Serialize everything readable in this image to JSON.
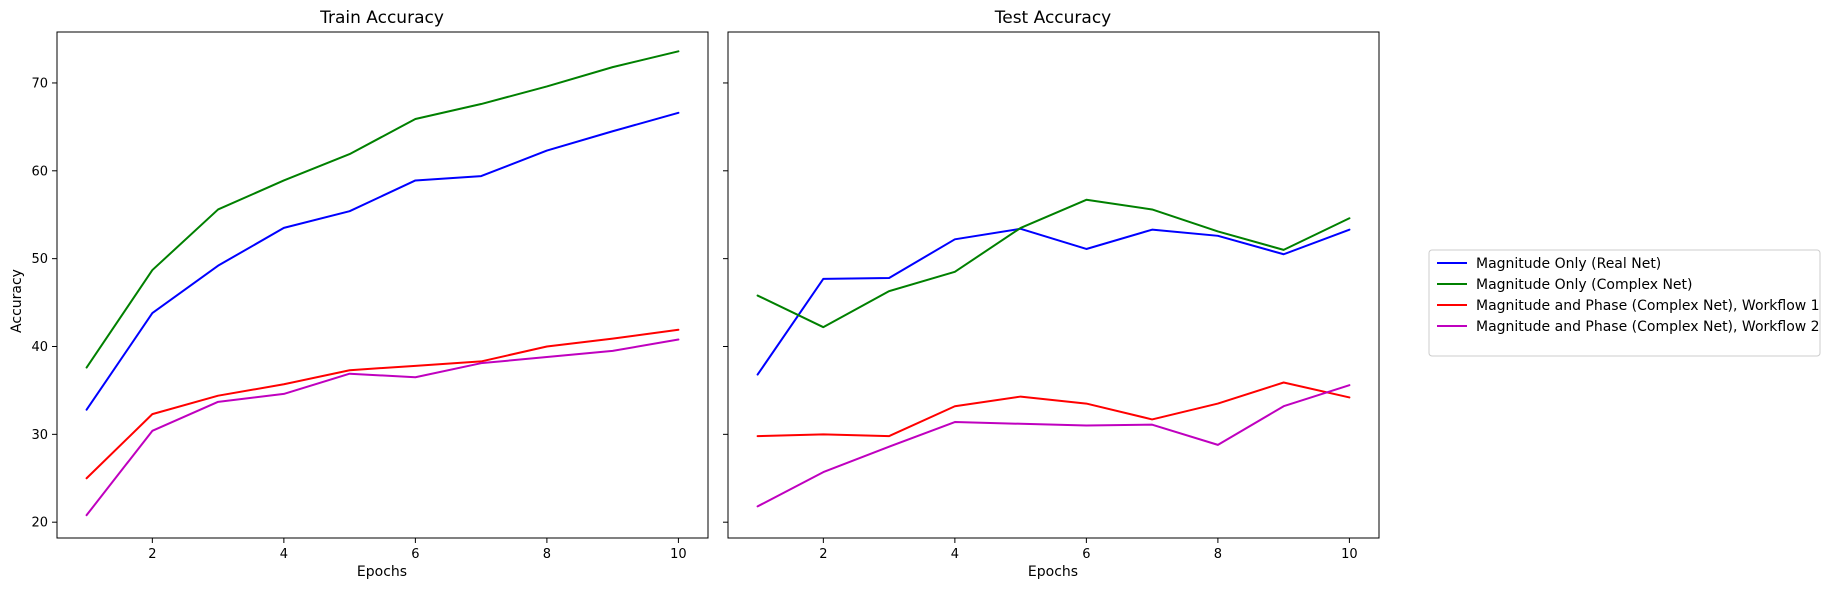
{
  "chart_data": [
    {
      "type": "line",
      "title": "Train Accuracy",
      "xlabel": "Epochs",
      "ylabel": "Accuracy",
      "x": [
        1,
        2,
        3,
        4,
        5,
        6,
        7,
        8,
        9,
        10
      ],
      "xticks": [
        2,
        4,
        6,
        8,
        10
      ],
      "yticks": [
        20,
        30,
        40,
        50,
        60,
        70
      ],
      "xlim": [
        0.55,
        10.45
      ],
      "ylim": [
        18.2,
        75.8
      ],
      "grid": false,
      "series": [
        {
          "name": "Magnitude Only (Real Net)",
          "color": "#0000ff",
          "values": [
            32.8,
            43.8,
            49.2,
            53.5,
            55.4,
            58.9,
            59.4,
            62.3,
            64.5,
            66.6
          ]
        },
        {
          "name": "Magnitude Only (Complex Net)",
          "color": "#008000",
          "values": [
            37.6,
            48.7,
            55.6,
            58.9,
            61.9,
            65.9,
            67.6,
            69.6,
            71.8,
            73.6
          ]
        },
        {
          "name": "Magnitude and Phase (Complex Net), Workflow 1",
          "color": "#ff0000",
          "values": [
            25.0,
            32.3,
            34.4,
            35.7,
            37.3,
            37.8,
            38.3,
            40.0,
            40.9,
            41.9
          ]
        },
        {
          "name": "Magnitude and Phase (Complex Net), Workflow 2",
          "color": "#bf00bf",
          "values": [
            20.8,
            30.4,
            33.7,
            34.6,
            36.9,
            36.5,
            38.1,
            38.8,
            39.5,
            40.8
          ]
        }
      ]
    },
    {
      "type": "line",
      "title": "Test Accuracy",
      "xlabel": "Epochs",
      "ylabel": "",
      "x": [
        1,
        2,
        3,
        4,
        5,
        6,
        7,
        8,
        9,
        10
      ],
      "xticks": [
        2,
        4,
        6,
        8,
        10
      ],
      "yticks": [
        20,
        30,
        40,
        50,
        60,
        70
      ],
      "xlim": [
        0.55,
        10.45
      ],
      "ylim": [
        18.2,
        75.8
      ],
      "shared_y": true,
      "grid": false,
      "series": [
        {
          "name": "Magnitude Only (Real Net)",
          "color": "#0000ff",
          "values": [
            36.8,
            47.7,
            47.8,
            52.2,
            53.4,
            51.1,
            53.3,
            52.6,
            50.5,
            53.3
          ]
        },
        {
          "name": "Magnitude Only (Complex Net)",
          "color": "#008000",
          "values": [
            45.8,
            42.2,
            46.3,
            48.5,
            53.5,
            56.7,
            55.6,
            53.1,
            51.0,
            54.6
          ]
        },
        {
          "name": "Magnitude and Phase (Complex Net), Workflow 1",
          "color": "#ff0000",
          "values": [
            29.8,
            30.0,
            29.8,
            33.2,
            34.3,
            33.5,
            31.7,
            33.5,
            35.9,
            34.2
          ]
        },
        {
          "name": "Magnitude and Phase (Complex Net), Workflow 2",
          "color": "#bf00bf",
          "values": [
            21.8,
            25.7,
            28.6,
            31.4,
            31.2,
            31.0,
            31.1,
            28.8,
            33.2,
            35.6
          ]
        }
      ]
    }
  ],
  "legend": {
    "placement": "right of plots",
    "entries": [
      {
        "label": "Magnitude Only (Real Net)",
        "color": "#0000ff"
      },
      {
        "label": "Magnitude Only (Complex Net)",
        "color": "#008000"
      },
      {
        "label": "Magnitude and Phase (Complex Net), Workflow 1",
        "color": "#ff0000"
      },
      {
        "label": "Magnitude and Phase (Complex Net), Workflow 2",
        "color": "#bf00bf"
      }
    ]
  }
}
